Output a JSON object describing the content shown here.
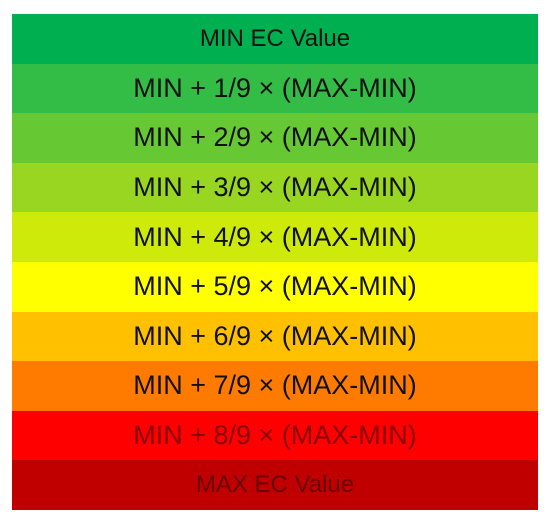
{
  "rows": [
    {
      "label": "MIN EC Value"
    },
    {
      "label": "MIN + 1/9 × (MAX-MIN)"
    },
    {
      "label": "MIN + 2/9 × (MAX-MIN)"
    },
    {
      "label": "MIN + 3/9 × (MAX-MIN)"
    },
    {
      "label": "MIN + 4/9 × (MAX-MIN)"
    },
    {
      "label": "MIN + 5/9 × (MAX-MIN)"
    },
    {
      "label": "MIN + 6/9 × (MAX-MIN)"
    },
    {
      "label": "MIN + 7/9 × (MAX-MIN)"
    },
    {
      "label": "MIN + 8/9 × (MAX-MIN)"
    },
    {
      "label": "MAX EC Value"
    }
  ]
}
